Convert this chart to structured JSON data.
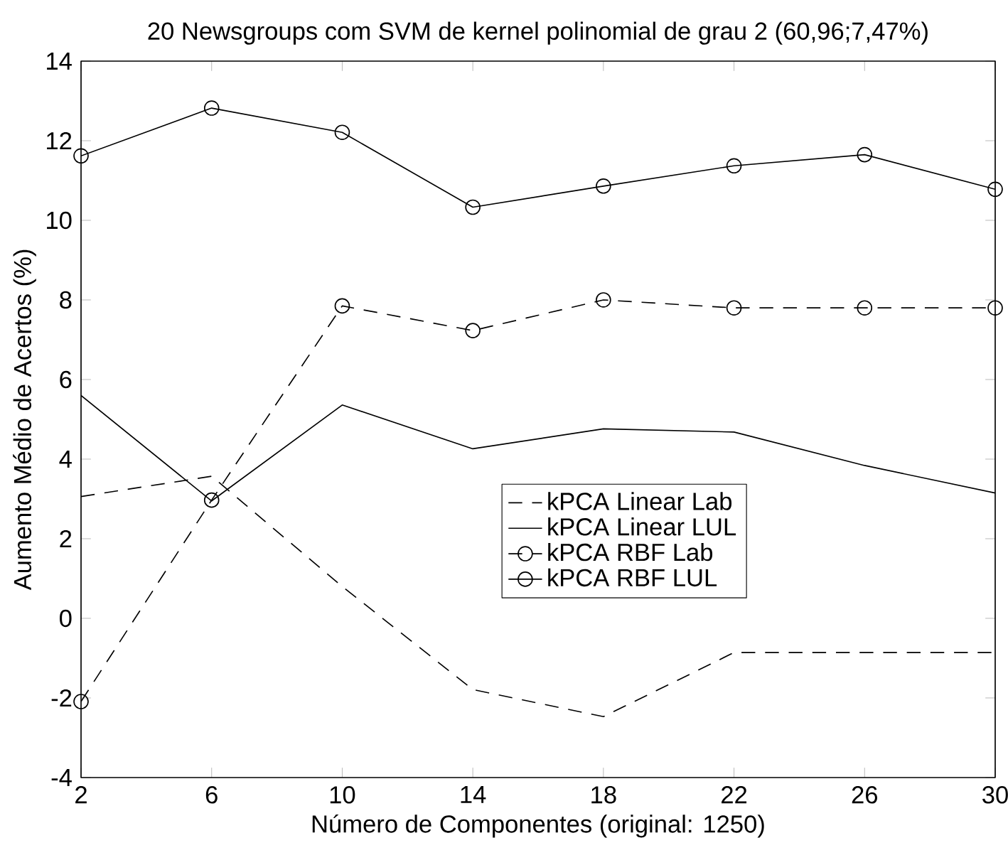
{
  "chart_data": {
    "type": "line",
    "title": "20 Newsgroups com SVM de kernel polinomial de grau 2 (60,96;7,47%)",
    "xlabel": "Número de Componentes (original: 1250)",
    "ylabel": "Aumento Médio de Acertos (%)",
    "x": [
      2,
      6,
      10,
      14,
      18,
      22,
      26,
      30
    ],
    "xlim": [
      2,
      30
    ],
    "ylim": [
      -4,
      14
    ],
    "xticks": [
      2,
      6,
      10,
      14,
      18,
      22,
      26,
      30
    ],
    "yticks": [
      -4,
      -2,
      0,
      2,
      4,
      6,
      8,
      10,
      12,
      14
    ],
    "grid": false,
    "legend": "right",
    "series": [
      {
        "name": "kPCA Linear Lab",
        "color": "#000000",
        "line_style": "dashed",
        "marker": "none",
        "values": [
          3.06,
          3.57,
          0.8,
          -1.79,
          -2.47,
          -0.86,
          -0.86,
          -0.86
        ]
      },
      {
        "name": "kPCA Linear LUL",
        "color": "#000000",
        "line_style": "solid",
        "marker": "none",
        "values": [
          5.6,
          2.95,
          5.36,
          4.26,
          4.76,
          4.68,
          3.84,
          3.15
        ]
      },
      {
        "name": "kPCA RBF Lab",
        "color": "#000000",
        "line_style": "dashed",
        "marker": "circle",
        "values": [
          -2.09,
          2.97,
          7.85,
          7.23,
          8.0,
          7.8,
          7.8,
          7.8
        ]
      },
      {
        "name": "kPCA RBF LUL",
        "color": "#000000",
        "line_style": "solid",
        "marker": "circle",
        "values": [
          11.62,
          12.82,
          12.21,
          10.33,
          10.86,
          11.37,
          11.65,
          10.78
        ]
      }
    ]
  }
}
